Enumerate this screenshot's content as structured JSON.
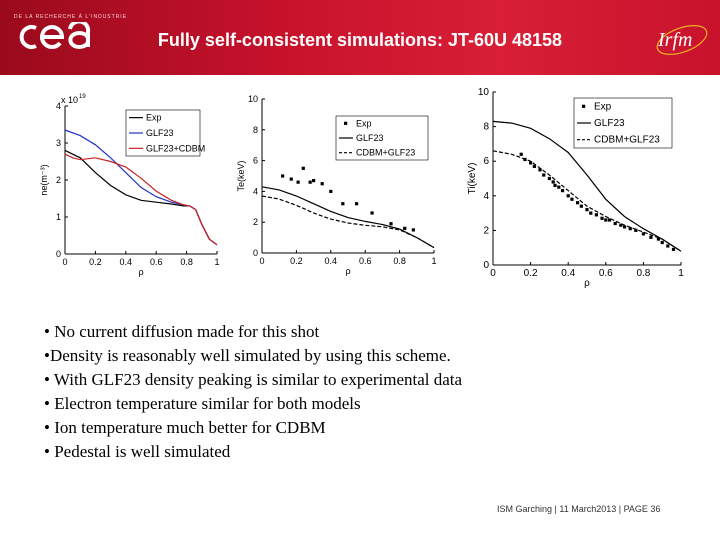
{
  "header": {
    "title": "Fully self-consistent simulations: JT-60U 48158",
    "cea_small_text": "DE LA RECHERCHE À L'INDUSTRIE",
    "cea_logo": "cea",
    "irfm_logo": "Irfm",
    "brand_color": "#c8122c"
  },
  "chart_data": [
    {
      "type": "line",
      "title": "",
      "xlabel": "ρ",
      "ylabel": "ne(m⁻³)",
      "y_multiplier": "x 10",
      "y_exponent": "19",
      "xlim": [
        0,
        1
      ],
      "ylim": [
        0,
        4
      ],
      "xticks": [
        "0",
        "0.2",
        "0.4",
        "0.6",
        "0.8",
        "1"
      ],
      "yticks": [
        "0",
        "1",
        "2",
        "3",
        "4"
      ],
      "legend_position": "top-right",
      "series": [
        {
          "name": "Exp",
          "color": "#000000",
          "style": "solid",
          "x": [
            0,
            0.1,
            0.2,
            0.3,
            0.4,
            0.5,
            0.6,
            0.7,
            0.78,
            0.82,
            0.86,
            0.9,
            0.95,
            1.0
          ],
          "y": [
            2.8,
            2.6,
            2.2,
            1.85,
            1.6,
            1.45,
            1.4,
            1.35,
            1.3,
            1.3,
            1.2,
            0.8,
            0.4,
            0.25
          ]
        },
        {
          "name": "GLF23",
          "color": "#2233cc",
          "style": "solid",
          "x": [
            0,
            0.1,
            0.2,
            0.3,
            0.4,
            0.5,
            0.6,
            0.7,
            0.78,
            0.82,
            0.86,
            0.9,
            0.95,
            1.0
          ],
          "y": [
            3.35,
            3.2,
            2.95,
            2.6,
            2.2,
            1.8,
            1.55,
            1.4,
            1.33,
            1.3,
            1.2,
            0.8,
            0.4,
            0.25
          ]
        },
        {
          "name": "GLF23+CDBM",
          "color": "#cc2222",
          "style": "solid",
          "x": [
            0,
            0.05,
            0.1,
            0.2,
            0.3,
            0.4,
            0.5,
            0.6,
            0.7,
            0.78,
            0.82,
            0.86,
            0.9,
            0.95,
            1.0
          ],
          "y": [
            2.7,
            2.6,
            2.55,
            2.6,
            2.5,
            2.35,
            2.05,
            1.7,
            1.45,
            1.33,
            1.3,
            1.2,
            0.8,
            0.4,
            0.25
          ]
        }
      ]
    },
    {
      "type": "line",
      "title": "",
      "xlabel": "ρ",
      "ylabel": "Te(keV)",
      "xlim": [
        0,
        1
      ],
      "ylim": [
        0,
        10
      ],
      "xticks": [
        "0",
        "0.2",
        "0.4",
        "0.6",
        "0.8",
        "1"
      ],
      "yticks": [
        "0",
        "2",
        "4",
        "6",
        "8",
        "10"
      ],
      "legend_position": "top-right",
      "series": [
        {
          "name": "Exp",
          "color": "#000000",
          "style": "markers",
          "x": [
            0.12,
            0.17,
            0.21,
            0.24,
            0.28,
            0.3,
            0.35,
            0.4,
            0.47,
            0.55,
            0.64,
            0.75,
            0.83,
            0.88
          ],
          "y": [
            5.0,
            4.8,
            4.6,
            5.5,
            4.6,
            4.7,
            4.5,
            4.0,
            3.2,
            3.2,
            2.6,
            1.9,
            1.6,
            1.5
          ]
        },
        {
          "name": "GLF23",
          "color": "#000000",
          "style": "solid",
          "x": [
            0,
            0.1,
            0.2,
            0.3,
            0.4,
            0.5,
            0.6,
            0.7,
            0.8,
            0.9,
            1.0
          ],
          "y": [
            4.3,
            4.1,
            3.7,
            3.2,
            2.7,
            2.3,
            2.05,
            1.85,
            1.55,
            1.0,
            0.35
          ]
        },
        {
          "name": "CDBM+GLF23",
          "color": "#000000",
          "style": "dashed",
          "x": [
            0,
            0.1,
            0.2,
            0.3,
            0.4,
            0.5,
            0.6,
            0.7,
            0.8,
            0.9,
            1.0
          ],
          "y": [
            3.7,
            3.5,
            3.1,
            2.6,
            2.2,
            1.95,
            1.8,
            1.7,
            1.5,
            1.0,
            0.35
          ]
        }
      ]
    },
    {
      "type": "line",
      "title": "",
      "xlabel": "ρ",
      "ylabel": "Ti(keV)",
      "xlim": [
        0,
        1
      ],
      "ylim": [
        0,
        10
      ],
      "xticks": [
        "0",
        "0.2",
        "0.4",
        "0.6",
        "0.8",
        "1"
      ],
      "yticks": [
        "0",
        "2",
        "4",
        "6",
        "8",
        "10"
      ],
      "legend_position": "top-right",
      "series": [
        {
          "name": "Exp",
          "color": "#000000",
          "style": "markers",
          "x": [
            0.15,
            0.17,
            0.2,
            0.22,
            0.25,
            0.27,
            0.3,
            0.32,
            0.33,
            0.35,
            0.37,
            0.4,
            0.42,
            0.45,
            0.47,
            0.5,
            0.52,
            0.55,
            0.58,
            0.6,
            0.62,
            0.65,
            0.68,
            0.7,
            0.73,
            0.76,
            0.8,
            0.84,
            0.88,
            0.9,
            0.93,
            0.96
          ],
          "y": [
            6.4,
            6.1,
            5.9,
            5.7,
            5.5,
            5.2,
            5.0,
            4.8,
            4.6,
            4.5,
            4.3,
            4.0,
            3.8,
            3.6,
            3.4,
            3.2,
            3.0,
            2.9,
            2.7,
            2.6,
            2.6,
            2.4,
            2.3,
            2.2,
            2.1,
            2.0,
            1.8,
            1.6,
            1.5,
            1.3,
            1.1,
            0.9
          ]
        },
        {
          "name": "GLF23",
          "color": "#000000",
          "style": "solid",
          "x": [
            0,
            0.1,
            0.2,
            0.3,
            0.4,
            0.5,
            0.6,
            0.7,
            0.8,
            0.9,
            1.0
          ],
          "y": [
            8.3,
            8.2,
            7.9,
            7.3,
            6.5,
            5.2,
            3.8,
            2.8,
            2.1,
            1.5,
            0.8
          ]
        },
        {
          "name": "CDBM+GLF23",
          "color": "#000000",
          "style": "dashed",
          "x": [
            0,
            0.1,
            0.2,
            0.3,
            0.4,
            0.5,
            0.6,
            0.7,
            0.8,
            0.9,
            1.0
          ],
          "y": [
            6.6,
            6.4,
            6.0,
            5.2,
            4.3,
            3.4,
            2.8,
            2.3,
            1.9,
            1.5,
            0.8
          ]
        }
      ]
    }
  ],
  "bullets": [
    "• No current diffusion made for this shot",
    "•Density is reasonably well simulated by using this scheme.",
    "• With GLF23 density peaking is similar to experimental data",
    "• Electron temperature similar for both models",
    "• Ion temperature much better for CDBM",
    "• Pedestal is well simulated"
  ],
  "footer": {
    "text": "ISM Garching | 11 March2013 |",
    "page": "PAGE 36"
  }
}
